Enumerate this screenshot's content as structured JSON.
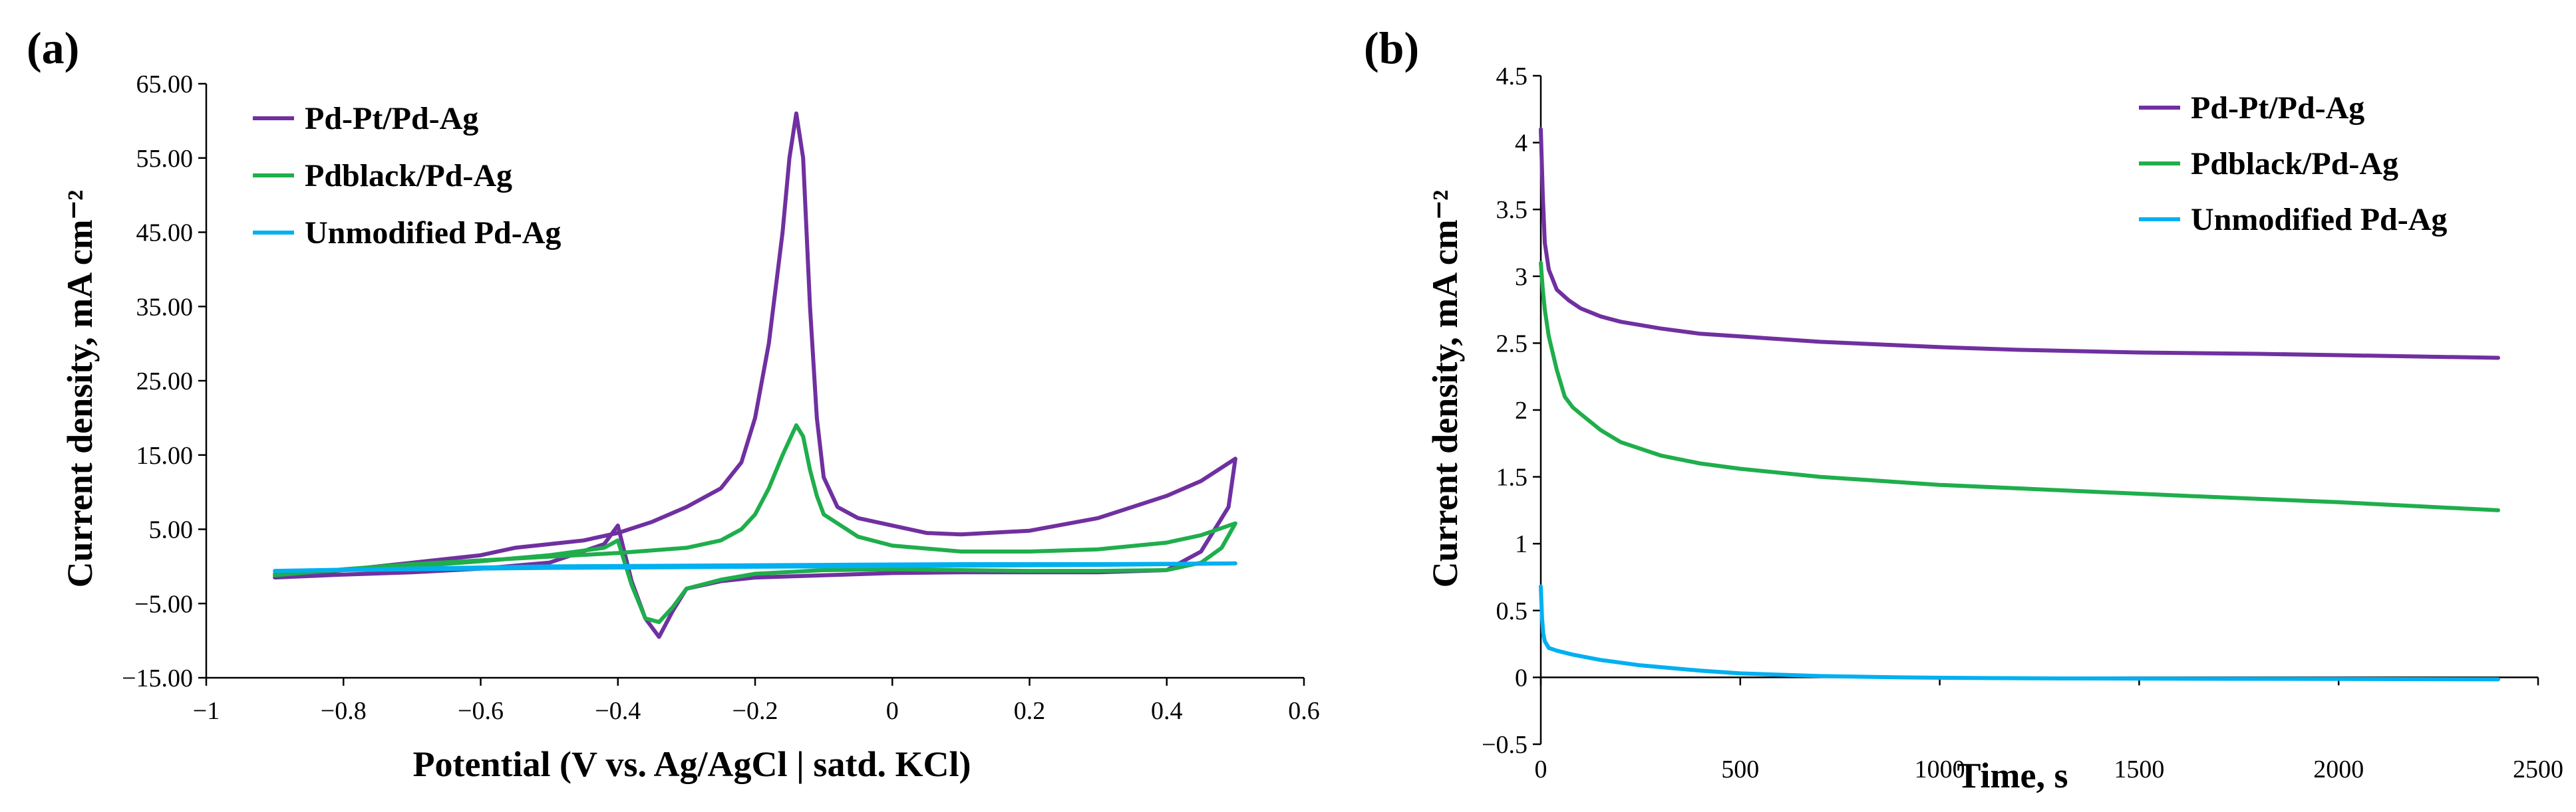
{
  "chart_data": [
    {
      "panel_label": "(a)",
      "type": "line",
      "xlabel": "Potential (V vs. Ag/AgCl | satd. KCl)",
      "ylabel": "Current density, mA cm⁻²",
      "xlim": [
        -1,
        0.6
      ],
      "ylim": [
        -15,
        65
      ],
      "xticks": [
        -1,
        -0.8,
        -0.6,
        -0.4,
        -0.2,
        0,
        0.2,
        0.4,
        0.6
      ],
      "xtick_labels": [
        "−1",
        "−0.8",
        "−0.6",
        "−0.4",
        "−0.2",
        "0",
        "0.2",
        "0.4",
        "0.6"
      ],
      "yticks": [
        -15,
        -5,
        5,
        15,
        25,
        35,
        45,
        55,
        65
      ],
      "ytick_labels": [
        "−15.00",
        "−5.00",
        "5.00",
        "15.00",
        "25.00",
        "35.00",
        "45.00",
        "55.00",
        "65.00"
      ],
      "legend_position": "top-left",
      "series": [
        {
          "name": "Pd-Pt/Pd-Ag",
          "color": "#7030a0",
          "x": [
            -0.9,
            -0.8,
            -0.7,
            -0.6,
            -0.55,
            -0.5,
            -0.45,
            -0.4,
            -0.35,
            -0.3,
            -0.25,
            -0.22,
            -0.2,
            -0.18,
            -0.16,
            -0.15,
            -0.14,
            -0.13,
            -0.12,
            -0.11,
            -0.1,
            -0.08,
            -0.05,
            0,
            0.05,
            0.1,
            0.2,
            0.3,
            0.4,
            0.45,
            0.5,
            0.49,
            0.45,
            0.4,
            0.3,
            0.2,
            0.1,
            0,
            -0.1,
            -0.2,
            -0.25,
            -0.3,
            -0.32,
            -0.34,
            -0.36,
            -0.38,
            -0.4,
            -0.42,
            -0.5,
            -0.6,
            -0.7,
            -0.8,
            -0.9
          ],
          "y": [
            -1.5,
            -0.5,
            0.5,
            1.5,
            2.5,
            3.0,
            3.5,
            4.5,
            6.0,
            8.0,
            10.5,
            14.0,
            20.0,
            30.0,
            45.0,
            55.0,
            61.0,
            55.0,
            35.0,
            20.0,
            12.0,
            8.0,
            6.5,
            5.5,
            4.5,
            4.3,
            4.8,
            6.5,
            9.5,
            11.5,
            14.5,
            8.0,
            2.0,
            -0.5,
            -0.8,
            -0.8,
            -0.8,
            -0.9,
            -1.2,
            -1.5,
            -2.0,
            -3.0,
            -6.0,
            -9.5,
            -7.0,
            -2.0,
            5.5,
            3.0,
            0.5,
            -0.3,
            -0.8,
            -1.1,
            -1.5
          ]
        },
        {
          "name": "Pdblack/Pd-Ag",
          "color": "#1fae4b",
          "x": [
            -0.9,
            -0.8,
            -0.7,
            -0.6,
            -0.5,
            -0.4,
            -0.3,
            -0.25,
            -0.22,
            -0.2,
            -0.18,
            -0.16,
            -0.14,
            -0.13,
            -0.12,
            -0.11,
            -0.1,
            -0.05,
            0,
            0.1,
            0.2,
            0.3,
            0.4,
            0.45,
            0.5,
            0.48,
            0.45,
            0.4,
            0.3,
            0.2,
            0.1,
            0,
            -0.1,
            -0.2,
            -0.25,
            -0.3,
            -0.32,
            -0.34,
            -0.36,
            -0.38,
            -0.4,
            -0.42,
            -0.5,
            -0.6,
            -0.7,
            -0.8,
            -0.9
          ],
          "y": [
            -1.2,
            -0.4,
            0.3,
            0.8,
            1.3,
            1.8,
            2.5,
            3.5,
            5.0,
            7.0,
            10.5,
            15.0,
            19.0,
            17.5,
            13.0,
            9.5,
            7.0,
            4.0,
            2.8,
            2.0,
            2.0,
            2.3,
            3.2,
            4.2,
            5.8,
            2.5,
            0.5,
            -0.5,
            -0.6,
            -0.6,
            -0.5,
            -0.4,
            -0.5,
            -1.0,
            -1.8,
            -3.0,
            -5.5,
            -7.5,
            -7.0,
            -2.5,
            3.5,
            2.5,
            1.5,
            0.7,
            0.0,
            -0.5,
            -1.0
          ]
        },
        {
          "name": "Unmodified Pd-Ag",
          "color": "#00b0f0",
          "x": [
            -0.9,
            -0.7,
            -0.5,
            -0.3,
            -0.1,
            0.1,
            0.3,
            0.5,
            0.3,
            0.1,
            -0.1,
            -0.3,
            -0.5,
            -0.7,
            -0.9
          ],
          "y": [
            -0.6,
            -0.3,
            0.0,
            0.1,
            0.2,
            0.3,
            0.3,
            0.4,
            0.2,
            0.1,
            0.0,
            -0.1,
            -0.2,
            -0.4,
            -0.6
          ]
        }
      ]
    },
    {
      "panel_label": "(b)",
      "type": "line",
      "xlabel": "Time, s",
      "ylabel": "Current density, mA cm⁻²",
      "xlim": [
        0,
        2500
      ],
      "ylim": [
        -0.5,
        4.5
      ],
      "xticks": [
        0,
        500,
        1000,
        1500,
        2000,
        2500
      ],
      "xtick_labels": [
        "0",
        "500",
        "1000",
        "1500",
        "2000",
        "2500"
      ],
      "yticks": [
        -0.5,
        0,
        0.5,
        1,
        1.5,
        2,
        2.5,
        3,
        3.5,
        4,
        4.5
      ],
      "ytick_labels": [
        "−0.5",
        "0",
        "0.5",
        "1",
        "1.5",
        "2",
        "2.5",
        "3",
        "3.5",
        "4",
        "4.5"
      ],
      "legend_position": "top-right",
      "series": [
        {
          "name": "Pd-Pt/Pd-Ag",
          "color": "#7030a0",
          "x": [
            0,
            5,
            10,
            20,
            40,
            70,
            100,
            150,
            200,
            300,
            400,
            500,
            700,
            1000,
            1200,
            1500,
            1800,
            2000,
            2200,
            2400
          ],
          "y": [
            4.1,
            3.6,
            3.25,
            3.05,
            2.9,
            2.82,
            2.76,
            2.7,
            2.66,
            2.61,
            2.57,
            2.55,
            2.51,
            2.47,
            2.45,
            2.43,
            2.42,
            2.41,
            2.4,
            2.39
          ]
        },
        {
          "name": "Pdblack/Pd-Ag",
          "color": "#1fae4b",
          "x": [
            0,
            5,
            10,
            20,
            40,
            60,
            80,
            100,
            150,
            200,
            300,
            400,
            500,
            700,
            1000,
            1300,
            1600,
            2000,
            2200,
            2400
          ],
          "y": [
            3.1,
            2.9,
            2.75,
            2.55,
            2.3,
            2.1,
            2.02,
            1.97,
            1.85,
            1.76,
            1.66,
            1.6,
            1.56,
            1.5,
            1.44,
            1.4,
            1.36,
            1.31,
            1.28,
            1.25
          ]
        },
        {
          "name": "Unmodified Pd-Ag",
          "color": "#00b0f0",
          "x": [
            0,
            3,
            6,
            10,
            20,
            40,
            80,
            150,
            250,
            400,
            500,
            700,
            900,
            1100,
            1300,
            1600,
            2000,
            2400
          ],
          "y": [
            0.68,
            0.45,
            0.33,
            0.27,
            0.22,
            0.2,
            0.17,
            0.13,
            0.09,
            0.05,
            0.03,
            0.01,
            0.0,
            -0.005,
            -0.008,
            -0.01,
            -0.012,
            -0.015
          ]
        }
      ]
    }
  ]
}
